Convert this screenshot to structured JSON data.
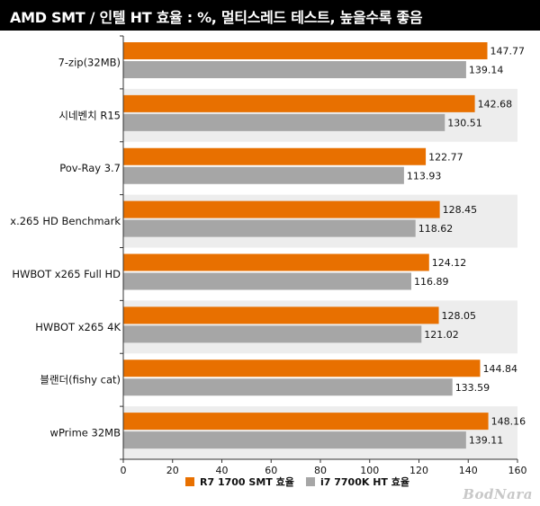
{
  "title": "AMD SMT / 인텔 HT 효율 : %, 멀티스레드 테스트, 높을수록 좋음",
  "watermark": "BodNara",
  "colors": {
    "series1": "#e87000",
    "series2": "#a6a6a6",
    "band": "#ededed",
    "title_bg": "#000000"
  },
  "chart_data": {
    "type": "bar",
    "orientation": "horizontal",
    "title": "AMD SMT / 인텔 HT 효율 : %, 멀티스레드 테스트, 높을수록 좋음",
    "categories": [
      "7-zip(32MB)",
      "시네벤치 R15",
      "Pov-Ray 3.7",
      "x.265 HD Benchmark",
      "HWBOT x265 Full HD",
      "HWBOT x265 4K",
      "블랜더(fishy cat)",
      "wPrime 32MB"
    ],
    "series": [
      {
        "name": "R7 1700 SMT 효율",
        "values": [
          147.77,
          142.68,
          122.77,
          128.45,
          124.12,
          128.05,
          144.84,
          148.16
        ]
      },
      {
        "name": "i7 7700K HT 효율",
        "values": [
          139.14,
          130.51,
          113.93,
          118.62,
          116.89,
          121.02,
          133.59,
          139.11
        ]
      }
    ],
    "value_labels": [
      [
        "147.77",
        "142.68",
        "122.77",
        "128.45",
        "124.12",
        "128.05",
        "144.84",
        "148.16"
      ],
      [
        "139.14",
        "130.51",
        "113.93",
        "118.62",
        "116.89",
        "121.02",
        "133.59",
        "139.11"
      ]
    ],
    "xlim": [
      0,
      160
    ],
    "xticks": [
      0,
      20,
      40,
      60,
      80,
      100,
      120,
      140,
      160
    ],
    "xlabel": "",
    "ylabel": "",
    "grid": false,
    "legend_position": "bottom"
  }
}
